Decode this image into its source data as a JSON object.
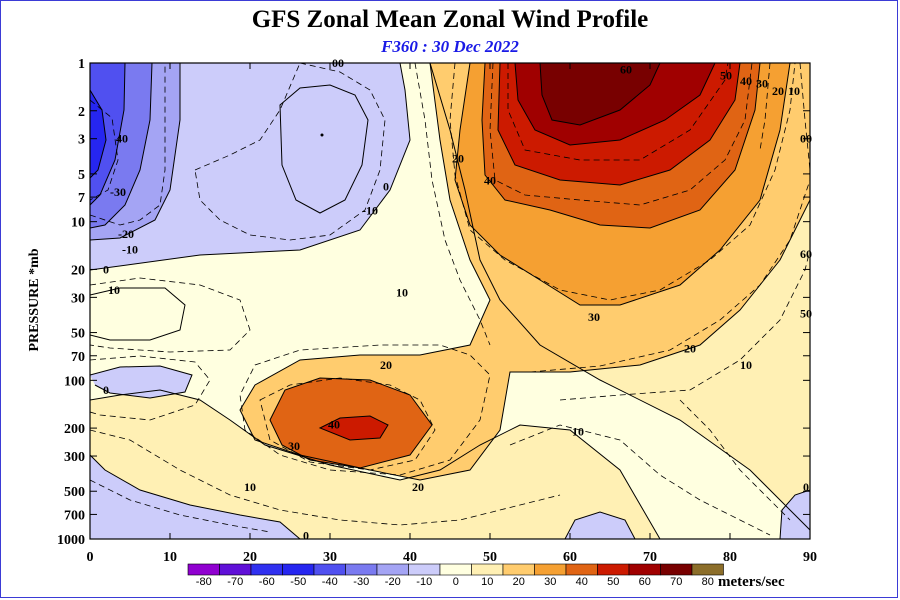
{
  "page": {
    "title": "GFS Zonal Mean Zonal Wind Profile",
    "subtitle": "F360 : 30 Dec 2022"
  },
  "chart_data": {
    "type": "contour",
    "title": "GFS Zonal Mean Zonal Wind Profile",
    "subtitle": "F360 : 30 Dec 2022",
    "xlabel": "",
    "ylabel": "PRESSURE *mb",
    "xlim": [
      0,
      90
    ],
    "ylim": [
      1000,
      1
    ],
    "y_scale": "log",
    "x_ticks": [
      "0",
      "10",
      "20",
      "30",
      "40",
      "50",
      "60",
      "70",
      "80",
      "90"
    ],
    "y_ticks": [
      "1",
      "2",
      "3",
      "5",
      "7",
      "10",
      "20",
      "30",
      "50",
      "70",
      "100",
      "200",
      "300",
      "500",
      "700",
      "1000"
    ],
    "colorbar": {
      "units": "meters/sec",
      "levels": [
        "-80",
        "-70",
        "-60",
        "-50",
        "-40",
        "-30",
        "-20",
        "-10",
        "0",
        "10",
        "20",
        "30",
        "40",
        "50",
        "60",
        "70",
        "80"
      ],
      "colors": [
        "#9000d0",
        "#6010d8",
        "#3030f0",
        "#2626f0",
        "#5050f0",
        "#7a7af0",
        "#a4a4f4",
        "#ccccfa",
        "#ffffe0",
        "#fff0b4",
        "#ffcc6e",
        "#f5a032",
        "#e06414",
        "#cc1a00",
        "#a00000",
        "#780000",
        "#8c6e2a"
      ]
    },
    "contour_labels": [
      {
        "text": "00",
        "lat": 31,
        "p": 1
      },
      {
        "text": "-10",
        "lat": 35,
        "p": 8.5
      },
      {
        "text": "40",
        "lat": 4,
        "p": 3
      },
      {
        "text": "-30",
        "lat": 3.5,
        "p": 6.5
      },
      {
        "text": "-20",
        "lat": 4.5,
        "p": 12
      },
      {
        "text": "-10",
        "lat": 5,
        "p": 15
      },
      {
        "text": "0",
        "lat": 2,
        "p": 20
      },
      {
        "text": "10",
        "lat": 3,
        "p": 27
      },
      {
        "text": "0",
        "lat": 37,
        "p": 6
      },
      {
        "text": "10",
        "lat": 39,
        "p": 28
      },
      {
        "text": "20",
        "lat": 46,
        "p": 4
      },
      {
        "text": "40",
        "lat": 50,
        "p": 5.5
      },
      {
        "text": "60",
        "lat": 67,
        "p": 1.1
      },
      {
        "text": "50",
        "lat": 79.5,
        "p": 1.2
      },
      {
        "text": "40",
        "lat": 82,
        "p": 1.3
      },
      {
        "text": "30",
        "lat": 84,
        "p": 1.35
      },
      {
        "text": "20",
        "lat": 86,
        "p": 1.5
      },
      {
        "text": "10",
        "lat": 88,
        "p": 1.5
      },
      {
        "text": "30",
        "lat": 63,
        "p": 40
      },
      {
        "text": "20",
        "lat": 75,
        "p": 63
      },
      {
        "text": "10",
        "lat": 82,
        "p": 80
      },
      {
        "text": "60",
        "lat": 89.5,
        "p": 16
      },
      {
        "text": "50",
        "lat": 89.5,
        "p": 38
      },
      {
        "text": "00",
        "lat": 89.5,
        "p": 3
      },
      {
        "text": "20",
        "lat": 37,
        "p": 80
      },
      {
        "text": "40",
        "lat": 30.5,
        "p": 190
      },
      {
        "text": "30",
        "lat": 25.5,
        "p": 260
      },
      {
        "text": "10",
        "lat": 20,
        "p": 470
      },
      {
        "text": "20",
        "lat": 41,
        "p": 470
      },
      {
        "text": "10",
        "lat": 61,
        "p": 210
      },
      {
        "text": "0",
        "lat": 2,
        "p": 115
      },
      {
        "text": "0",
        "lat": 27,
        "p": 950
      },
      {
        "text": "0",
        "lat": 89.5,
        "p": 470
      }
    ],
    "max_wind_cores": [
      {
        "lat": 68,
        "p": 2,
        "max_ms": 70
      },
      {
        "lat": 34,
        "p": 200,
        "max_ms": 50
      },
      {
        "lat": 1,
        "p": 3,
        "min_ms": -50
      },
      {
        "lat": 29,
        "p": 3,
        "min_ms": -20
      }
    ]
  }
}
